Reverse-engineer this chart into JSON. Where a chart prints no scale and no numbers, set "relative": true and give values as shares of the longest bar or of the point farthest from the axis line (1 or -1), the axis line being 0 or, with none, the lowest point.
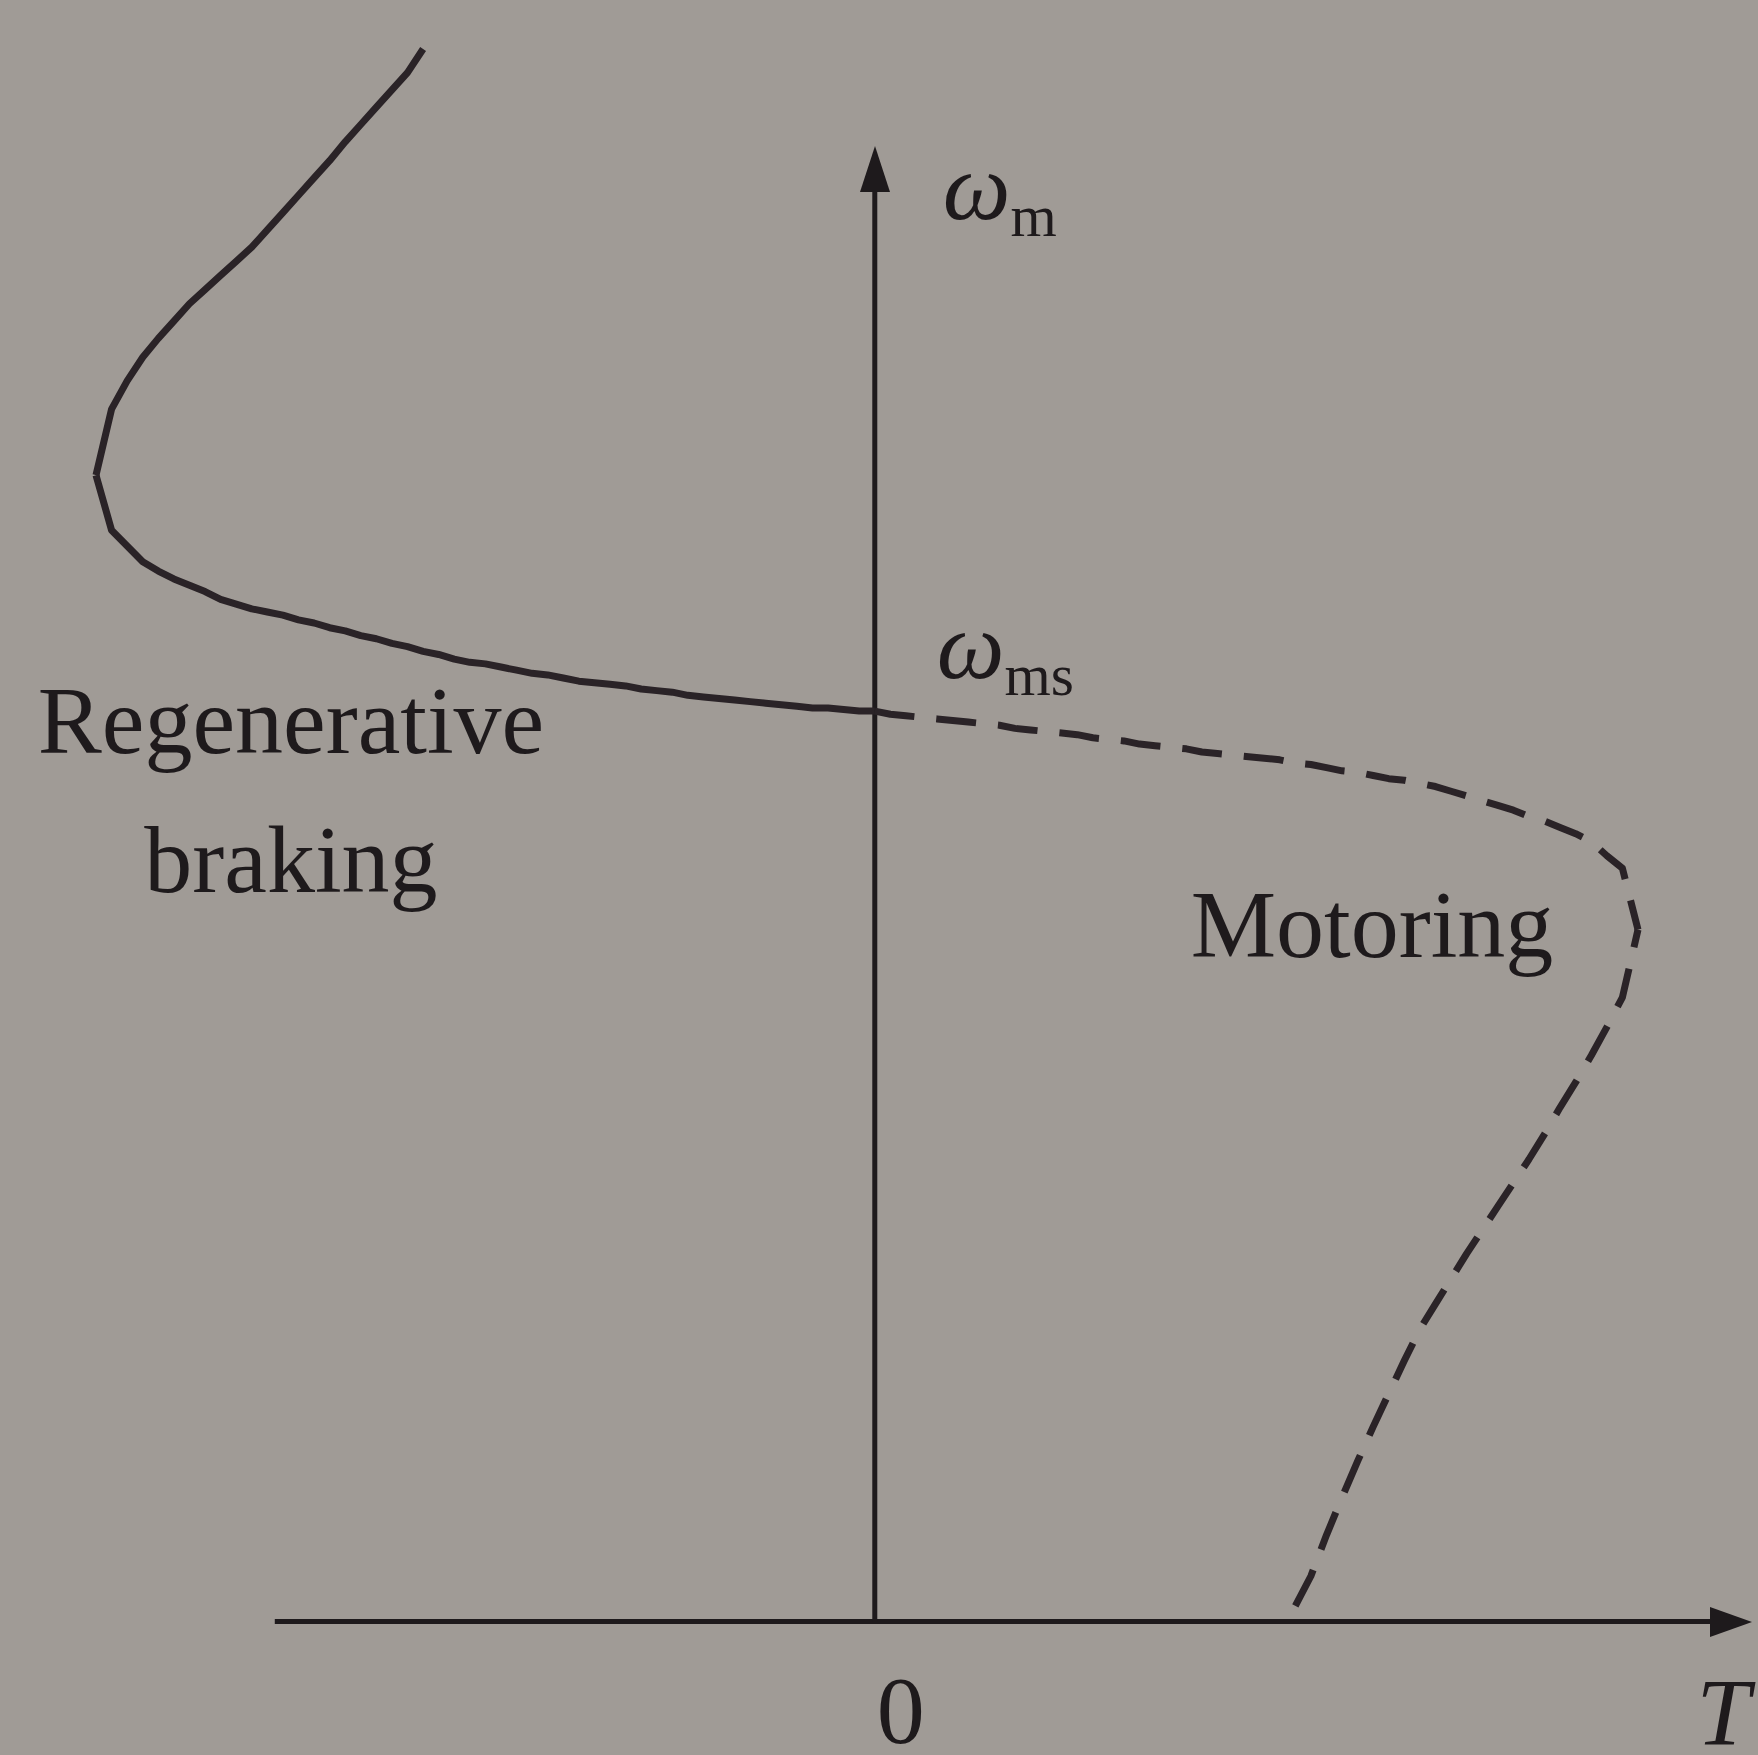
{
  "chart_data": {
    "type": "line",
    "relative": true,
    "xlabel": "T",
    "ylabel": "ω$_{m}$",
    "categories": [
      null,
      null,
      null,
      null,
      null,
      null,
      null,
      null,
      null,
      null,
      null,
      null,
      null,
      null,
      null,
      null,
      null,
      null,
      null,
      null,
      null,
      null,
      null,
      null,
      null,
      null,
      null,
      null,
      null,
      null,
      null,
      null,
      null,
      null,
      null,
      null,
      null,
      null,
      null,
      null,
      null,
      null,
      null,
      null,
      null,
      null,
      null,
      null,
      null,
      null,
      null,
      null,
      null,
      null,
      null,
      null,
      null,
      null,
      null,
      null,
      null,
      null,
      null,
      null,
      null,
      null,
      null,
      null,
      null,
      null,
      null,
      null,
      null,
      null,
      null,
      null,
      null,
      null,
      null,
      null,
      null,
      null,
      null,
      null,
      null,
      null,
      null,
      null,
      null,
      null,
      null,
      null,
      null,
      null,
      null,
      null,
      null,
      null,
      null,
      null
    ],
    "series": [
      {
        "color": "#2a2327",
        "line_style": "solid",
        "values": [
          0.729,
          0.771,
          0.789,
          0.804,
          0.816,
          0.827,
          0.838,
          0.847,
          0.856,
          0.865,
          0.874,
          0.885,
          0.896,
          0.907,
          0.918,
          0.929,
          0.941,
          0.952,
          0.963,
          0.974,
          0.985,
          1,
          null,
          null,
          null,
          null,
          null,
          null,
          null,
          null,
          null,
          null,
          null,
          null,
          null,
          null,
          null,
          null,
          null,
          null,
          null,
          null,
          null,
          null,
          null,
          null,
          null,
          null,
          null,
          null,
          null,
          null,
          null,
          null,
          null,
          null,
          null,
          null,
          null,
          null,
          null,
          null,
          null,
          null,
          null,
          null,
          null,
          null,
          null,
          null,
          null,
          null,
          null,
          null,
          null,
          null,
          null,
          null,
          null,
          null,
          null,
          null,
          null,
          null,
          null,
          null,
          null,
          null,
          null,
          null,
          null,
          null,
          null,
          null,
          null,
          null,
          null,
          null,
          null,
          null
        ]
      },
      {
        "color": "#2a2327",
        "line_style": "solid",
        "values": [
          0.729,
          0.694,
          0.684,
          0.674,
          0.668,
          0.663,
          0.659,
          0.655,
          0.65,
          0.647,
          0.644,
          0.642,
          0.64,
          0.637,
          0.635,
          0.632,
          0.63,
          0.627,
          0.625,
          0.622,
          0.62,
          0.617,
          0.615,
          0.612,
          0.61,
          0.609,
          0.607,
          0.605,
          0.603,
          0.602,
          0.6,
          0.598,
          0.597,
          0.596,
          0.595,
          0.593,
          0.592,
          0.591,
          0.589,
          0.588,
          0.587,
          0.586,
          0.585,
          0.584,
          0.583,
          0.582,
          0.581,
          0.581,
          0.58,
          0.579,
          0.579,
          null,
          null,
          null,
          null,
          null,
          null,
          null,
          null,
          null,
          null,
          null,
          null,
          null,
          null,
          null,
          null,
          null,
          null,
          null,
          null,
          null,
          null,
          null,
          null,
          null,
          null,
          null,
          null,
          null,
          null,
          null,
          null,
          null,
          null,
          null,
          null,
          null,
          null,
          null,
          null,
          null,
          null,
          null,
          null,
          null,
          null,
          null,
          null,
          null
        ]
      },
      {
        "color": "#2a2327",
        "line_style": "dashed",
        "values": [
          null,
          null,
          null,
          null,
          null,
          null,
          null,
          null,
          null,
          null,
          null,
          null,
          null,
          null,
          null,
          null,
          null,
          null,
          null,
          null,
          null,
          null,
          null,
          null,
          null,
          null,
          null,
          null,
          null,
          null,
          null,
          null,
          null,
          null,
          null,
          null,
          null,
          null,
          null,
          null,
          null,
          null,
          null,
          null,
          null,
          null,
          null,
          null,
          null,
          null,
          0.579,
          0.577,
          0.576,
          0.575,
          0.574,
          0.573,
          0.572,
          0.571,
          0.57,
          0.568,
          0.567,
          0.566,
          0.565,
          0.564,
          0.562,
          0.561,
          0.56,
          0.558,
          0.557,
          0.556,
          0.555,
          0.553,
          0.552,
          0.551,
          0.55,
          0.549,
          0.548,
          0.546,
          0.545,
          0.543,
          0.541,
          0.54,
          0.538,
          0.536,
          0.535,
          0.533,
          0.531,
          0.528,
          0.525,
          0.522,
          0.519,
          0.516,
          0.512,
          0.509,
          0.505,
          0.501,
          0.496,
          0.487,
          0.479,
          0.44
        ]
      },
      {
        "color": "#2a2327",
        "line_style": "dashed",
        "values": [
          null,
          null,
          null,
          null,
          null,
          null,
          null,
          null,
          null,
          null,
          null,
          null,
          null,
          null,
          null,
          null,
          null,
          null,
          null,
          null,
          null,
          null,
          null,
          null,
          null,
          null,
          null,
          null,
          null,
          null,
          null,
          null,
          null,
          null,
          null,
          null,
          null,
          null,
          null,
          null,
          null,
          null,
          null,
          null,
          null,
          null,
          null,
          null,
          null,
          null,
          null,
          null,
          null,
          null,
          null,
          null,
          null,
          null,
          null,
          null,
          null,
          null,
          null,
          null,
          null,
          null,
          null,
          null,
          null,
          null,
          null,
          null,
          null,
          null,
          null,
          null,
          null,
          0.01,
          0.029,
          0.055,
          0.079,
          0.102,
          0.124,
          0.145,
          0.166,
          0.186,
          0.202,
          0.218,
          0.234,
          0.249,
          0.264,
          0.279,
          0.294,
          0.31,
          0.327,
          0.343,
          0.36,
          0.378,
          0.397,
          0.44
        ]
      }
    ],
    "annotations": [
      "ω$_{ms}$",
      "0",
      "Regenerative braking",
      "Motoring"
    ]
  }
}
